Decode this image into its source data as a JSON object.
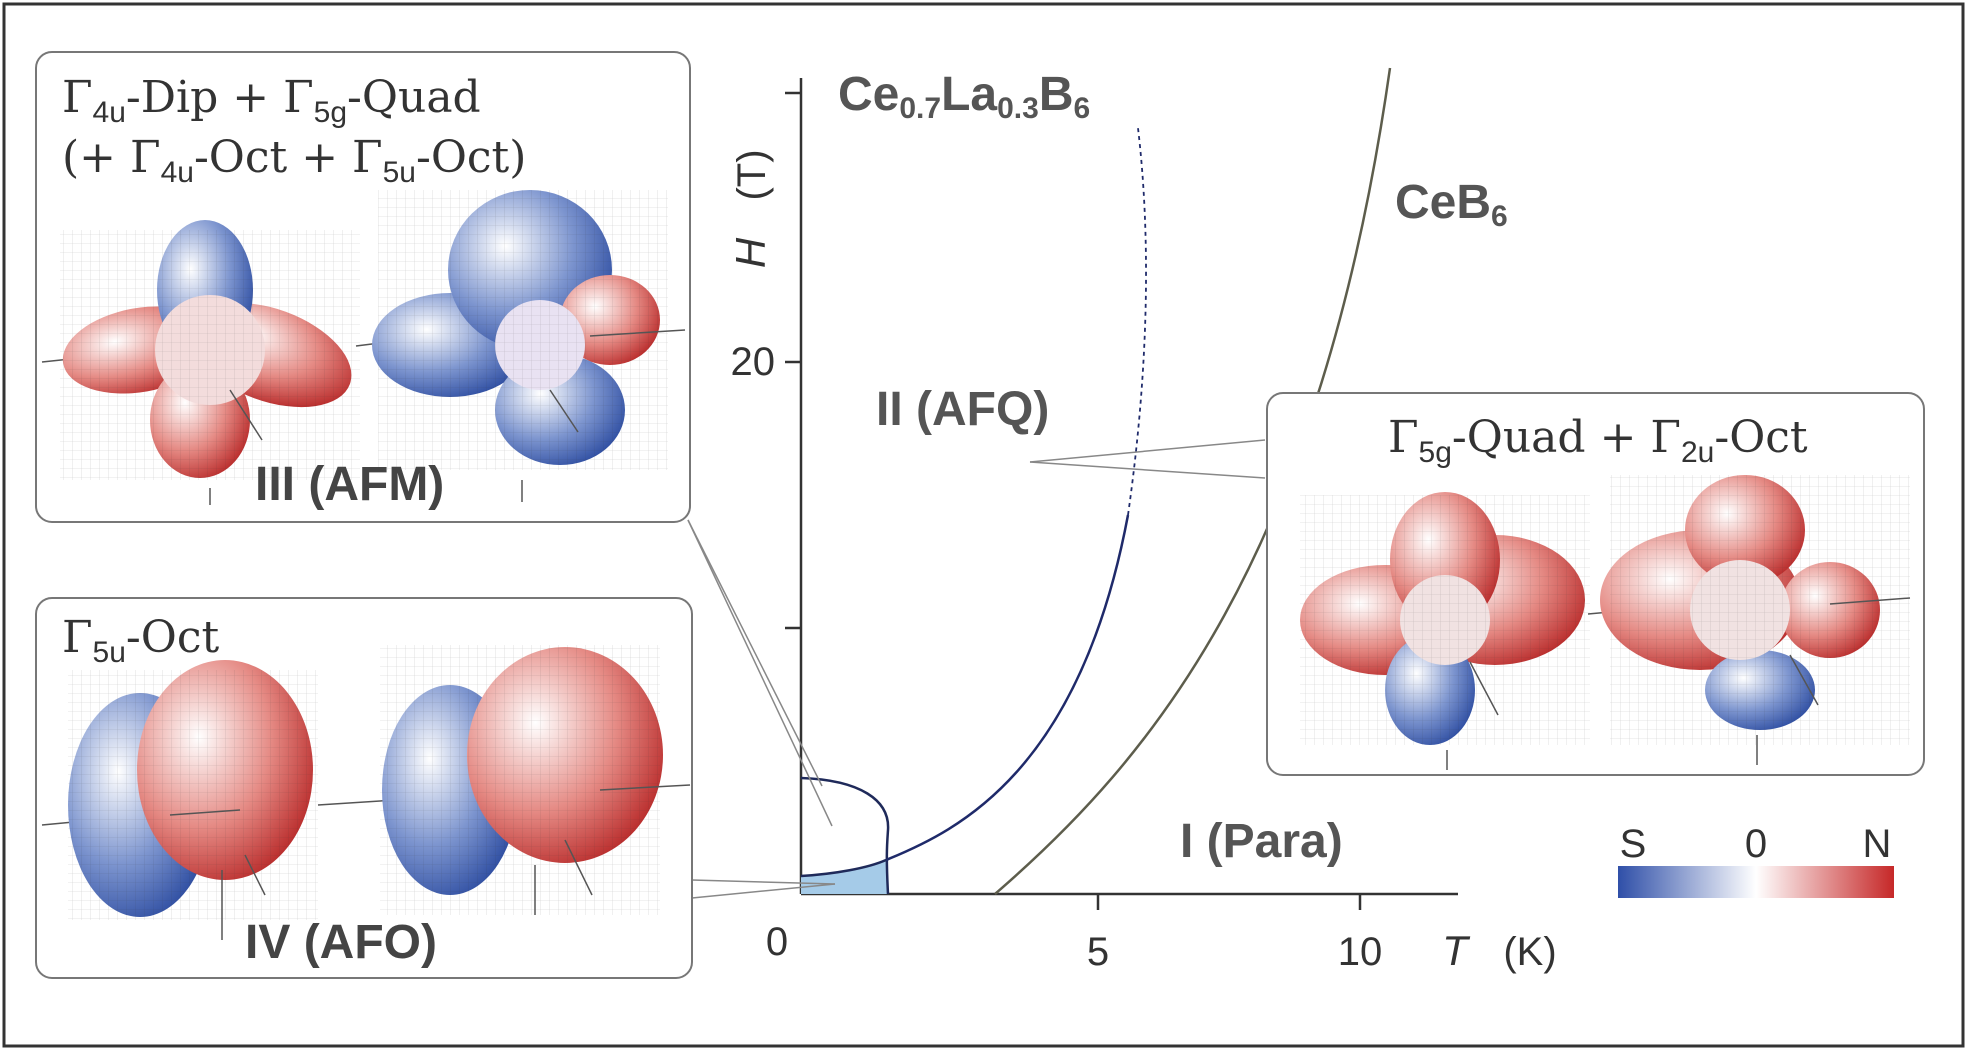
{
  "axes": {
    "y_label": "H",
    "y_unit": "(T)",
    "y_tick_20": "20",
    "x_label": "T",
    "x_unit": "(K)",
    "x_tick_0": "0",
    "x_tick_5": "5",
    "x_tick_10": "10"
  },
  "materials": {
    "ce_la": {
      "p1": "Ce",
      "s1": "0.7",
      "p2": "La",
      "s2": "0.3",
      "p3": "B",
      "s3": "6"
    },
    "ceb6": {
      "p1": "CeB",
      "s1": "6"
    }
  },
  "phases": {
    "para": "I (Para)",
    "afq": "II (AFQ)",
    "afm": "III (AFM)",
    "afo": "IV (AFO)"
  },
  "panels": {
    "afm": {
      "line1": [
        {
          "t": "Γ"
        },
        {
          "t": "4u",
          "sub": true
        },
        {
          "t": "-Dip + "
        },
        {
          "t": "Γ"
        },
        {
          "t": "5g",
          "sub": true
        },
        {
          "t": "-Quad"
        }
      ],
      "line2": [
        {
          "t": "(+ "
        },
        {
          "t": "Γ"
        },
        {
          "t": "4u",
          "sub": true
        },
        {
          "t": "-Oct + "
        },
        {
          "t": "Γ"
        },
        {
          "t": "5u",
          "sub": true
        },
        {
          "t": "-Oct)"
        }
      ]
    },
    "afo": {
      "line1": [
        {
          "t": "Γ"
        },
        {
          "t": "5u",
          "sub": true
        },
        {
          "t": "-Oct"
        }
      ]
    },
    "afq": {
      "line1": [
        {
          "t": "Γ"
        },
        {
          "t": "5g",
          "sub": true
        },
        {
          "t": "-Quad + "
        },
        {
          "t": "Γ"
        },
        {
          "t": "2u",
          "sub": true
        },
        {
          "t": "-Oct"
        }
      ]
    }
  },
  "colorbar": {
    "left_label": "S",
    "mid_label": "0",
    "right_label": "N",
    "colors": [
      "#2f4fa8",
      "#ffffff",
      "#c62828"
    ]
  }
}
